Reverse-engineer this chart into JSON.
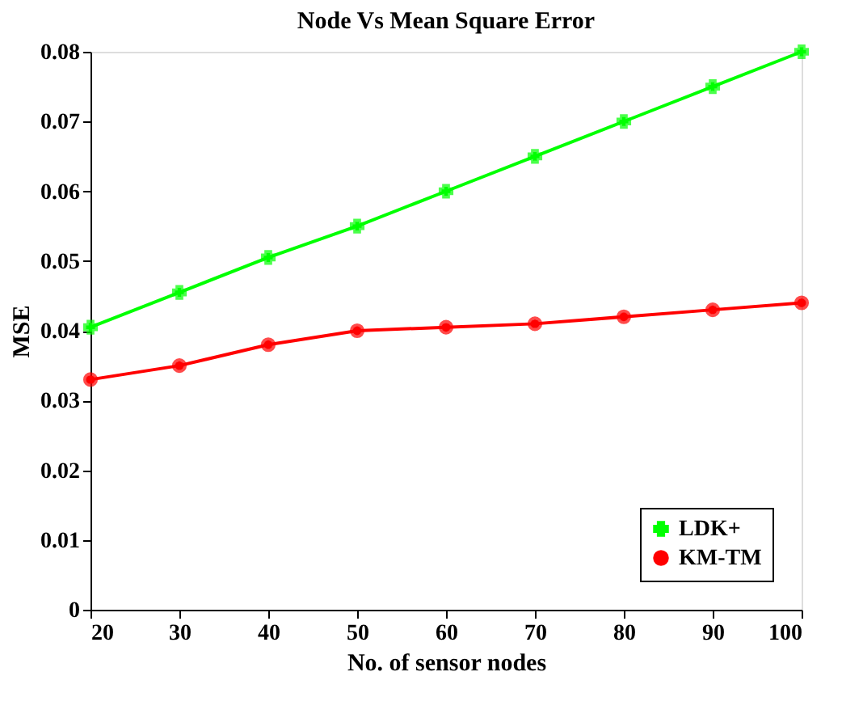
{
  "chart_data": {
    "type": "line",
    "title": "Node Vs Mean Square Error",
    "xlabel": "No. of sensor nodes",
    "ylabel": "MSE",
    "x": [
      20,
      30,
      40,
      50,
      60,
      70,
      80,
      90,
      100
    ],
    "series": [
      {
        "name": "LDK+",
        "color": "#00ff00",
        "marker": "cross",
        "values": [
          0.0405,
          0.0455,
          0.0505,
          0.055,
          0.06,
          0.065,
          0.07,
          0.075,
          0.08
        ]
      },
      {
        "name": "KM-TM",
        "color": "#ff0000",
        "marker": "circle",
        "values": [
          0.033,
          0.035,
          0.038,
          0.04,
          0.0405,
          0.041,
          0.042,
          0.043,
          0.044
        ]
      }
    ],
    "xlim": [
      20,
      100
    ],
    "xticks": [
      20,
      30,
      40,
      50,
      60,
      70,
      80,
      90,
      100
    ],
    "ylim": [
      0,
      0.08
    ],
    "yticks": [
      0,
      0.01,
      0.02,
      0.03,
      0.04,
      0.05,
      0.06,
      0.07,
      0.08
    ],
    "grid": false,
    "legend": "bottom right",
    "line_style": "solid"
  }
}
